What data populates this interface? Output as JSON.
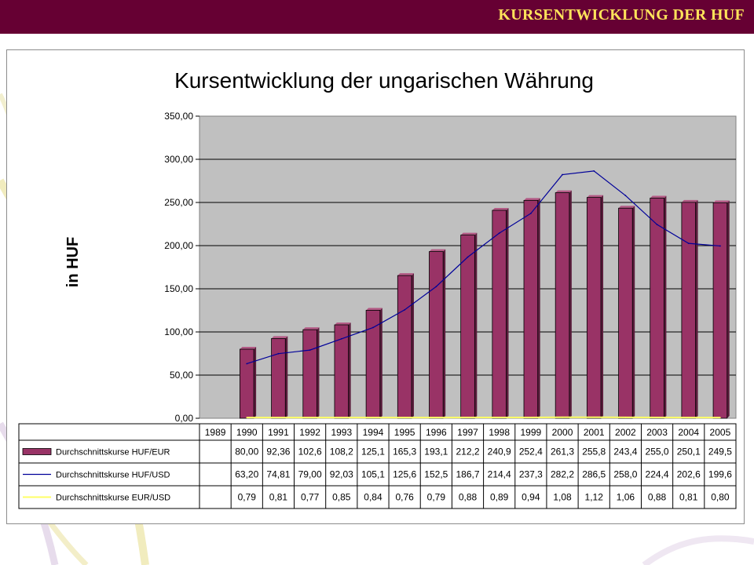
{
  "header": {
    "title": "KURSENTWICKLUNG DER HUF"
  },
  "colors": {
    "header_bg": "#660033",
    "header_text": "#ffe35a",
    "bar": "#993366",
    "line_usd": "#000099",
    "line_eur_usd": "#ffff66",
    "plot_bg": "#c0c0c0"
  },
  "chart_data": {
    "type": "bar",
    "title": "Kursentwicklung der ungarischen Währung",
    "ylabel": "in HUF",
    "xlabel": "",
    "ylim": [
      0,
      350
    ],
    "yticks": [
      "0,00",
      "50,00",
      "100,00",
      "150,00",
      "200,00",
      "250,00",
      "300,00",
      "350,00"
    ],
    "grid": true,
    "legend": "data-table",
    "categories": [
      "1989",
      "1990",
      "1991",
      "1992",
      "1993",
      "1994",
      "1995",
      "1996",
      "1997",
      "1998",
      "1999",
      "2000",
      "2001",
      "2002",
      "2003",
      "2004",
      "2005"
    ],
    "series": [
      {
        "name": "Durchschnittskurse HUF/EUR",
        "type": "bar",
        "values": [
          null,
          80.0,
          92.36,
          102.6,
          108.2,
          125.1,
          165.3,
          193.1,
          212.2,
          240.9,
          252.4,
          261.3,
          255.8,
          243.4,
          255.0,
          250.1,
          249.5
        ],
        "labels": [
          "",
          "80,00",
          "92,36",
          "102,6",
          "108,2",
          "125,1",
          "165,3",
          "193,1",
          "212,2",
          "240,9",
          "252,4",
          "261,3",
          "255,8",
          "243,4",
          "255,0",
          "250,1",
          "249,5"
        ]
      },
      {
        "name": "Durchschnittskurse HUF/USD",
        "type": "line",
        "values": [
          null,
          63.2,
          74.81,
          79.0,
          92.03,
          105.1,
          125.6,
          152.5,
          186.7,
          214.4,
          237.3,
          282.2,
          286.5,
          258.0,
          224.4,
          202.6,
          199.6
        ],
        "labels": [
          "",
          "63,20",
          "74,81",
          "79,00",
          "92,03",
          "105,1",
          "125,6",
          "152,5",
          "186,7",
          "214,4",
          "237,3",
          "282,2",
          "286,5",
          "258,0",
          "224,4",
          "202,6",
          "199,6"
        ]
      },
      {
        "name": "Durchschnittskurse EUR/USD",
        "type": "line",
        "values": [
          null,
          0.79,
          0.81,
          0.77,
          0.85,
          0.84,
          0.76,
          0.79,
          0.88,
          0.89,
          0.94,
          1.08,
          1.12,
          1.06,
          0.88,
          0.81,
          0.8
        ],
        "labels": [
          "",
          "0,79",
          "0,81",
          "0,77",
          "0,85",
          "0,84",
          "0,76",
          "0,79",
          "0,88",
          "0,89",
          "0,94",
          "1,08",
          "1,12",
          "1,06",
          "0,88",
          "0,81",
          "0,80"
        ]
      }
    ]
  }
}
